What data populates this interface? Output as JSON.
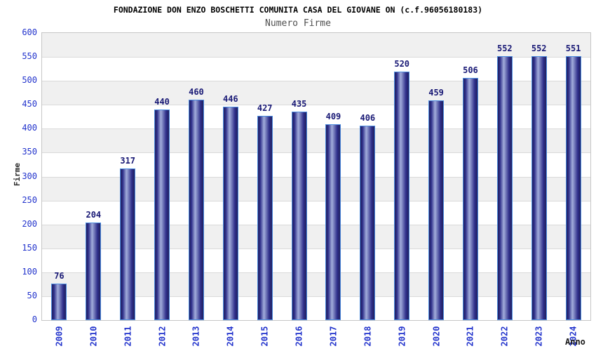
{
  "header": {
    "title": "FONDAZIONE DON ENZO BOSCHETTI COMUNITA CASA DEL GIOVANE ON (c.f.96056180183)",
    "subtitle": "Numero Firme"
  },
  "chart_data": {
    "type": "bar",
    "title": "FONDAZIONE DON ENZO BOSCHETTI COMUNITA CASA DEL GIOVANE ON (c.f.96056180183)",
    "subtitle": "Numero Firme",
    "xlabel": "Anno",
    "ylabel": "Firme",
    "categories": [
      "2009",
      "2010",
      "2011",
      "2012",
      "2013",
      "2014",
      "2015",
      "2016",
      "2017",
      "2018",
      "2019",
      "2020",
      "2021",
      "2022",
      "2023",
      "2024"
    ],
    "values": [
      76,
      204,
      317,
      440,
      460,
      446,
      427,
      435,
      409,
      406,
      520,
      459,
      506,
      552,
      552,
      551
    ],
    "ylim": [
      0,
      600
    ],
    "ytick_step": 50,
    "grid": true,
    "legend": "none",
    "style": {
      "tick_label_color": "#2233cc",
      "value_label_color": "#181875",
      "bar_dark": "#20205e",
      "bar_mid": "#2e2e8a",
      "bar_highlight": "#a2addb",
      "bar_border": "#4c8ce0",
      "band_gray": "#f0f0f0",
      "band_white": "#ffffff"
    }
  }
}
